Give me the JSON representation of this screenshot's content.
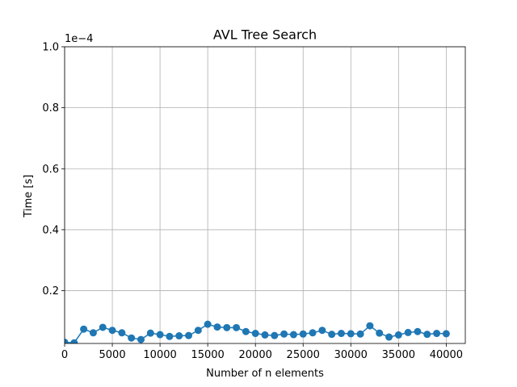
{
  "chart_data": {
    "type": "line",
    "title": "AVL Tree Search",
    "xlabel": "Number of n elements",
    "ylabel": "Time [s]",
    "y_scale_label": "1e−4",
    "xlim": [
      0,
      42000
    ],
    "ylim": [
      0.027,
      1.0
    ],
    "grid": true,
    "marker": "circle",
    "color": "#1f77b4",
    "x_ticks": [
      {
        "value": 0,
        "label": "0"
      },
      {
        "value": 5000,
        "label": "5000"
      },
      {
        "value": 10000,
        "label": "10000"
      },
      {
        "value": 15000,
        "label": "15000"
      },
      {
        "value": 20000,
        "label": "20000"
      },
      {
        "value": 25000,
        "label": "25000"
      },
      {
        "value": 30000,
        "label": "30000"
      },
      {
        "value": 35000,
        "label": "35000"
      },
      {
        "value": 40000,
        "label": "40000"
      }
    ],
    "y_ticks": [
      {
        "value": 0.2,
        "label": "0.2"
      },
      {
        "value": 0.4,
        "label": "0.4"
      },
      {
        "value": 0.6,
        "label": "0.6"
      },
      {
        "value": 0.8,
        "label": "0.8"
      },
      {
        "value": 1.0,
        "label": "1.0"
      }
    ],
    "series": [
      {
        "x": [
          0,
          1000,
          2000,
          3000,
          4000,
          5000,
          6000,
          7000,
          8000,
          9000,
          10000,
          11000,
          12000,
          13000,
          14000,
          15000,
          16000,
          17000,
          18000,
          19000,
          20000,
          21000,
          22000,
          23000,
          24000,
          25000,
          26000,
          27000,
          28000,
          29000,
          30000,
          31000,
          32000,
          33000,
          34000,
          35000,
          36000,
          37000,
          38000,
          39000,
          40000
        ],
        "y": [
          0.031,
          0.029,
          0.074,
          0.062,
          0.08,
          0.07,
          0.062,
          0.045,
          0.04,
          0.061,
          0.056,
          0.05,
          0.052,
          0.053,
          0.07,
          0.09,
          0.081,
          0.079,
          0.079,
          0.066,
          0.06,
          0.055,
          0.053,
          0.058,
          0.056,
          0.058,
          0.062,
          0.07,
          0.057,
          0.06,
          0.059,
          0.058,
          0.085,
          0.061,
          0.048,
          0.055,
          0.063,
          0.066,
          0.057,
          0.06,
          0.059
        ]
      }
    ]
  }
}
